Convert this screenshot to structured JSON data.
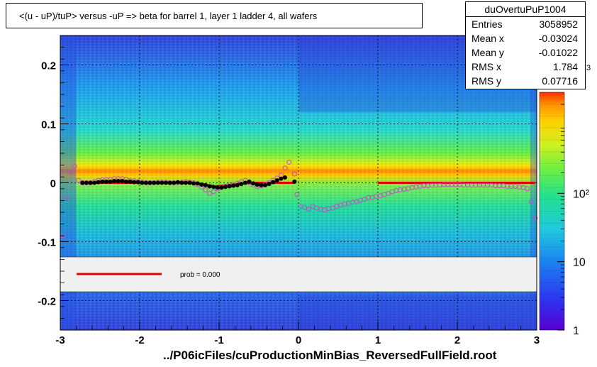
{
  "title": "<(u - uP)/tuP>  versus  -uP => beta for barrel 1, layer 1 ladder 4, all wafers",
  "stats": {
    "name": "duOvertuPuP1004",
    "rows": [
      {
        "key": "Entries",
        "value": "3058952"
      },
      {
        "key": "Mean x",
        "value": "-0.03024"
      },
      {
        "key": "Mean y",
        "value": "-0.01022"
      },
      {
        "key": "RMS x",
        "value": "1.784"
      },
      {
        "key": "RMS y",
        "value": "0.07716"
      }
    ]
  },
  "footer": "../P06icFiles/cuProductionMinBias_ReversedFullField.root",
  "legend": {
    "label": "prob = 0.000",
    "line_color": "#e00000"
  },
  "colors": {
    "fit": "#e00000",
    "profile": "#000000",
    "mean_marker": "#cc44cc"
  },
  "chart_data": {
    "type": "heatmap",
    "xlim": [
      -3,
      3
    ],
    "ylim": [
      -0.25,
      0.25
    ],
    "xticks": [
      {
        "v": -3,
        "label": "-3"
      },
      {
        "v": -2,
        "label": "-2"
      },
      {
        "v": -1,
        "label": "-1"
      },
      {
        "v": 0,
        "label": "0"
      },
      {
        "v": 1,
        "label": "1"
      },
      {
        "v": 2,
        "label": "2"
      },
      {
        "v": 3,
        "label": "3"
      }
    ],
    "yticks": [
      {
        "v": -0.2,
        "label": "-0.2"
      },
      {
        "v": -0.1,
        "label": "-0.1"
      },
      {
        "v": 0,
        "label": "0"
      },
      {
        "v": 0.1,
        "label": "0.1"
      },
      {
        "v": 0.2,
        "label": "0.2"
      }
    ],
    "zaxis": {
      "scale": "log",
      "labels": [
        {
          "v": 1,
          "label": "1"
        },
        {
          "v": 10,
          "label": "10"
        },
        {
          "v": 100,
          "label": "10²"
        }
      ],
      "exponent_label": "3"
    },
    "grid": true,
    "profile_points": [
      [
        -2.72,
        0.0
      ],
      [
        -2.67,
        0.0
      ],
      [
        -2.62,
        0.0
      ],
      [
        -2.57,
        0.0
      ],
      [
        -2.52,
        0.001
      ],
      [
        -2.47,
        0.002
      ],
      [
        -2.42,
        0.002
      ],
      [
        -2.37,
        0.002
      ],
      [
        -2.32,
        0.003
      ],
      [
        -2.27,
        0.003
      ],
      [
        -2.22,
        0.003
      ],
      [
        -2.17,
        0.002
      ],
      [
        -2.12,
        0.002
      ],
      [
        -2.07,
        0.001
      ],
      [
        -2.02,
        0.001
      ],
      [
        -1.97,
        0.0
      ],
      [
        -1.92,
        0.0
      ],
      [
        -1.87,
        0.0
      ],
      [
        -1.82,
        0.0
      ],
      [
        -1.77,
        0.0
      ],
      [
        -1.72,
        0.0
      ],
      [
        -1.67,
        0.0
      ],
      [
        -1.62,
        0.0
      ],
      [
        -1.57,
        0.0
      ],
      [
        -1.52,
        0.001
      ],
      [
        -1.47,
        0.0
      ],
      [
        -1.42,
        0.0
      ],
      [
        -1.37,
        0.0
      ],
      [
        -1.32,
        -0.001
      ],
      [
        -1.27,
        -0.001
      ],
      [
        -1.22,
        -0.003
      ],
      [
        -1.17,
        -0.004
      ],
      [
        -1.12,
        -0.006
      ],
      [
        -1.07,
        -0.007
      ],
      [
        -1.02,
        -0.008
      ],
      [
        -0.97,
        -0.008
      ],
      [
        -0.92,
        -0.007
      ],
      [
        -0.87,
        -0.006
      ],
      [
        -0.82,
        -0.005
      ],
      [
        -0.77,
        -0.004
      ],
      [
        -0.72,
        -0.002
      ],
      [
        -0.67,
        0.0
      ],
      [
        -0.62,
        0.002
      ],
      [
        -0.57,
        -0.001
      ],
      [
        -0.52,
        -0.003
      ],
      [
        -0.47,
        -0.004
      ],
      [
        -0.42,
        -0.004
      ],
      [
        -0.37,
        -0.002
      ],
      [
        -0.32,
        0.001
      ],
      [
        -0.27,
        0.004
      ],
      [
        -0.22,
        0.007
      ],
      [
        -0.17,
        0.009
      ],
      [
        -0.05,
        0.002
      ]
    ],
    "mean_markers": [
      [
        -2.97,
        -0.09
      ],
      [
        -2.92,
        -0.025
      ],
      [
        -2.87,
        0.018
      ],
      [
        -2.82,
        0.028
      ],
      [
        -2.77,
        0.004
      ],
      [
        -2.72,
        0.0
      ],
      [
        -2.67,
        0.0
      ],
      [
        -2.62,
        0.0
      ],
      [
        -2.57,
        0.002
      ],
      [
        -2.52,
        0.004
      ],
      [
        -2.47,
        0.005
      ],
      [
        -2.42,
        0.005
      ],
      [
        -2.37,
        0.006
      ],
      [
        -2.32,
        0.007
      ],
      [
        -2.27,
        0.007
      ],
      [
        -2.22,
        0.007
      ],
      [
        -2.17,
        0.006
      ],
      [
        -2.12,
        0.004
      ],
      [
        -2.07,
        0.003
      ],
      [
        -2.02,
        0.002
      ],
      [
        -1.97,
        0.001
      ],
      [
        -1.92,
        0.0
      ],
      [
        -1.87,
        0.0
      ],
      [
        -1.82,
        0.0
      ],
      [
        -1.77,
        0.001
      ],
      [
        -1.72,
        0.001
      ],
      [
        -1.67,
        0.001
      ],
      [
        -1.62,
        0.0
      ],
      [
        -1.57,
        0.0
      ],
      [
        -1.52,
        0.0
      ],
      [
        -1.47,
        0.001
      ],
      [
        -1.42,
        0.002
      ],
      [
        -1.37,
        0.001
      ],
      [
        -1.32,
        0.0
      ],
      [
        -1.27,
        -0.003
      ],
      [
        -1.22,
        -0.007
      ],
      [
        -1.17,
        -0.012
      ],
      [
        -1.12,
        -0.018
      ],
      [
        -1.07,
        -0.015
      ],
      [
        -1.02,
        -0.01
      ],
      [
        -0.97,
        -0.008
      ],
      [
        -0.92,
        -0.006
      ],
      [
        -0.87,
        -0.004
      ],
      [
        -0.82,
        -0.003
      ],
      [
        -0.77,
        -0.001
      ],
      [
        -0.72,
        0.002
      ],
      [
        -0.67,
        0.004
      ],
      [
        -0.62,
        0.0
      ],
      [
        -0.57,
        -0.004
      ],
      [
        -0.52,
        -0.006
      ],
      [
        -0.47,
        -0.005
      ],
      [
        -0.42,
        -0.003
      ],
      [
        -0.37,
        0.0
      ],
      [
        -0.32,
        0.004
      ],
      [
        -0.27,
        0.008
      ],
      [
        -0.22,
        0.013
      ],
      [
        -0.17,
        0.025
      ],
      [
        -0.12,
        0.035
      ],
      [
        -0.05,
        0.015
      ],
      [
        -0.02,
        -0.02
      ],
      [
        0.03,
        -0.04
      ],
      [
        0.08,
        -0.042
      ],
      [
        0.13,
        -0.045
      ],
      [
        0.18,
        -0.04
      ],
      [
        0.23,
        -0.043
      ],
      [
        0.28,
        -0.045
      ],
      [
        0.33,
        -0.046
      ],
      [
        0.38,
        -0.044
      ],
      [
        0.43,
        -0.043
      ],
      [
        0.48,
        -0.04
      ],
      [
        0.53,
        -0.038
      ],
      [
        0.58,
        -0.036
      ],
      [
        0.63,
        -0.035
      ],
      [
        0.68,
        -0.033
      ],
      [
        0.73,
        -0.032
      ],
      [
        0.78,
        -0.03
      ],
      [
        0.83,
        -0.028
      ],
      [
        0.88,
        -0.025
      ],
      [
        0.93,
        -0.025
      ],
      [
        0.98,
        -0.023
      ],
      [
        1.03,
        -0.022
      ],
      [
        1.08,
        -0.02
      ],
      [
        1.13,
        -0.018
      ],
      [
        1.18,
        -0.015
      ],
      [
        1.23,
        -0.013
      ],
      [
        1.28,
        -0.012
      ],
      [
        1.33,
        -0.011
      ],
      [
        1.38,
        -0.01
      ],
      [
        1.43,
        -0.008
      ],
      [
        1.48,
        -0.007
      ],
      [
        1.53,
        -0.006
      ],
      [
        1.58,
        -0.005
      ],
      [
        1.63,
        -0.005
      ],
      [
        1.68,
        -0.004
      ],
      [
        1.73,
        -0.004
      ],
      [
        1.78,
        -0.004
      ],
      [
        1.83,
        -0.003
      ],
      [
        1.88,
        -0.003
      ],
      [
        1.93,
        -0.003
      ],
      [
        1.98,
        -0.003
      ],
      [
        2.03,
        -0.003
      ],
      [
        2.08,
        -0.004
      ],
      [
        2.13,
        -0.004
      ],
      [
        2.18,
        -0.004
      ],
      [
        2.23,
        -0.004
      ],
      [
        2.28,
        -0.004
      ],
      [
        2.33,
        -0.004
      ],
      [
        2.38,
        -0.004
      ],
      [
        2.43,
        -0.004
      ],
      [
        2.48,
        -0.005
      ],
      [
        2.53,
        -0.005
      ],
      [
        2.58,
        -0.005
      ],
      [
        2.63,
        -0.006
      ],
      [
        2.68,
        -0.006
      ],
      [
        2.73,
        -0.006
      ],
      [
        2.78,
        -0.007
      ],
      [
        2.83,
        -0.008
      ],
      [
        2.88,
        -0.01
      ],
      [
        2.93,
        -0.032
      ],
      [
        2.98,
        -0.06
      ]
    ],
    "fit_segments": [
      [
        -2.75,
        0.0,
        -1.3,
        0.0
      ],
      [
        -1.3,
        0.0,
        -1.05,
        -0.006
      ],
      [
        -1.05,
        -0.006,
        -0.6,
        0.0
      ],
      [
        -0.6,
        0.0,
        -0.3,
        0.0
      ],
      [
        -0.3,
        0.0,
        -0.05,
        0.0
      ],
      [
        1.0,
        0.0,
        2.98,
        0.0
      ]
    ]
  }
}
